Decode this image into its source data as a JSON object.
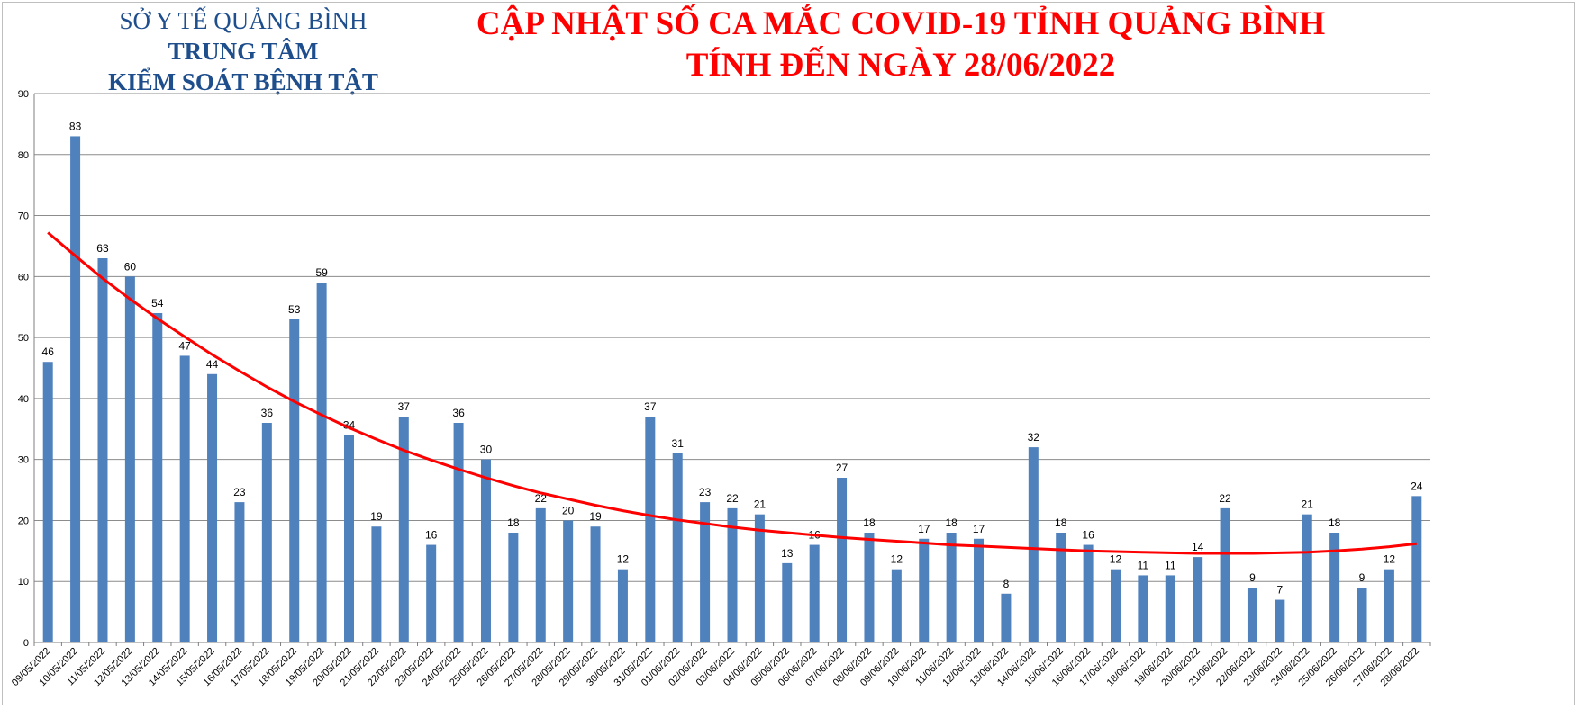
{
  "header": {
    "org_line1": "SỞ Y TẾ QUẢNG BÌNH",
    "org_line2": "TRUNG TÂM",
    "org_line3": "KIỂM SOÁT BỆNH TẬT",
    "title_line1": "CẬP NHẬT SỐ CA MẮC COVID-19 TỈNH QUẢNG BÌNH",
    "title_line2": "TÍNH ĐẾN NGÀY 28/06/2022"
  },
  "colors": {
    "bar": "#4f81bd",
    "trend": "#ff0000",
    "title": "#ff0000",
    "org": "#1f4e8c",
    "grid": "#8c8c8c"
  },
  "chart_data": {
    "type": "bar",
    "categories": [
      "09/05/2022",
      "10/05/2022",
      "11/05/2022",
      "12/05/2022",
      "13/05/2022",
      "14/05/2022",
      "15/05/2022",
      "16/05/2022",
      "17/05/2022",
      "18/05/2022",
      "19/05/2022",
      "20/05/2022",
      "21/05/2022",
      "22/05/2022",
      "23/05/2022",
      "24/05/2022",
      "25/05/2022",
      "26/05/2022",
      "27/05/2022",
      "28/05/2022",
      "29/05/2022",
      "30/05/2022",
      "31/05/2022",
      "01/06/2022",
      "02/06/2022",
      "03/06/2022",
      "04/06/2022",
      "05/06/2022",
      "06/06/2022",
      "07/06/2022",
      "08/06/2022",
      "09/06/2022",
      "10/06/2022",
      "11/06/2022",
      "12/06/2022",
      "13/06/2022",
      "14/06/2022",
      "15/06/2022",
      "16/06/2022",
      "17/06/2022",
      "18/06/2022",
      "19/06/2022",
      "20/06/2022",
      "21/06/2022",
      "22/06/2022",
      "23/06/2022",
      "24/06/2022",
      "25/06/2022",
      "26/06/2022",
      "27/06/2022",
      "28/06/2022"
    ],
    "values": [
      46,
      83,
      63,
      60,
      54,
      47,
      44,
      23,
      36,
      53,
      59,
      34,
      19,
      37,
      16,
      36,
      30,
      18,
      22,
      20,
      19,
      12,
      37,
      31,
      23,
      22,
      21,
      13,
      16,
      27,
      18,
      12,
      17,
      18,
      17,
      8,
      32,
      18,
      16,
      12,
      11,
      11,
      14,
      22,
      9,
      7,
      21,
      18,
      9,
      12,
      24
    ],
    "trendline": {
      "type": "polynomial",
      "values": [
        67.2,
        63.4,
        59.7,
        56.3,
        53.1,
        50.1,
        47.2,
        44.5,
        41.9,
        39.5,
        37.3,
        35.2,
        33.3,
        31.5,
        29.9,
        28.4,
        27.0,
        25.7,
        24.5,
        23.5,
        22.5,
        21.6,
        20.8,
        20.1,
        19.5,
        18.9,
        18.4,
        18.0,
        17.6,
        17.2,
        16.9,
        16.6,
        16.3,
        16.0,
        15.8,
        15.6,
        15.4,
        15.2,
        15.0,
        14.9,
        14.8,
        14.7,
        14.6,
        14.6,
        14.6,
        14.7,
        14.8,
        15.0,
        15.3,
        15.7,
        16.2
      ]
    },
    "ylim": [
      0,
      90
    ],
    "yticks": [
      0,
      10,
      20,
      30,
      40,
      50,
      60,
      70,
      80,
      90
    ],
    "grid": true,
    "legend": "none"
  }
}
